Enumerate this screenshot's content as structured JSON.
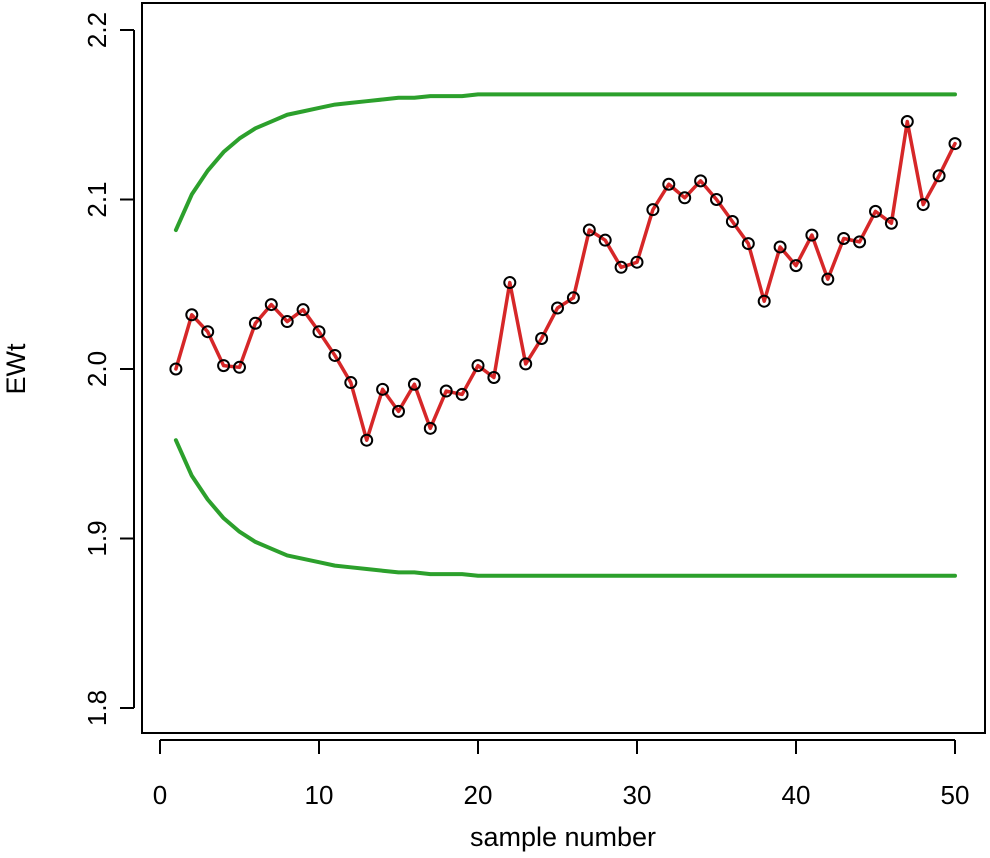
{
  "chart_data": {
    "type": "line",
    "title": "",
    "xlabel": "sample number",
    "ylabel": "EWt",
    "xlim": [
      1,
      50
    ],
    "ylim": [
      1.8,
      2.2
    ],
    "x_ticks": [
      0,
      10,
      20,
      30,
      40,
      50
    ],
    "x_tick_labels": [
      "0",
      "10",
      "20",
      "30",
      "40",
      "50"
    ],
    "y_ticks": [
      1.8,
      1.9,
      2.0,
      2.1,
      2.2
    ],
    "y_tick_labels": [
      "1.8",
      "1.9",
      "2.0",
      "2.1",
      "2.2"
    ],
    "grid": false,
    "legend": "none",
    "x": [
      1,
      2,
      3,
      4,
      5,
      6,
      7,
      8,
      9,
      10,
      11,
      12,
      13,
      14,
      15,
      16,
      17,
      18,
      19,
      20,
      21,
      22,
      23,
      24,
      25,
      26,
      27,
      28,
      29,
      30,
      31,
      32,
      33,
      34,
      35,
      36,
      37,
      38,
      39,
      40,
      41,
      42,
      43,
      44,
      45,
      46,
      47,
      48,
      49,
      50
    ],
    "series": [
      {
        "role": "data",
        "color": "#d62728",
        "marker": "open-circle",
        "values": [
          2.0,
          2.032,
          2.022,
          2.002,
          2.001,
          2.027,
          2.038,
          2.028,
          2.035,
          2.022,
          2.008,
          1.992,
          1.958,
          1.988,
          1.975,
          1.991,
          1.965,
          1.987,
          1.985,
          2.002,
          1.995,
          2.051,
          2.003,
          2.018,
          2.036,
          2.042,
          2.082,
          2.076,
          2.06,
          2.063,
          2.094,
          2.109,
          2.101,
          2.111,
          2.1,
          2.087,
          2.074,
          2.04,
          2.072,
          2.061,
          2.079,
          2.053,
          2.077,
          2.075,
          2.093,
          2.086,
          2.146,
          2.097,
          2.114,
          2.133
        ]
      },
      {
        "role": "upper-limit",
        "color": "#2ca02c",
        "values": [
          2.082,
          2.103,
          2.117,
          2.128,
          2.136,
          2.142,
          2.146,
          2.15,
          2.152,
          2.154,
          2.156,
          2.157,
          2.158,
          2.159,
          2.16,
          2.16,
          2.161,
          2.161,
          2.161,
          2.162,
          2.162,
          2.162,
          2.162,
          2.162,
          2.162,
          2.162,
          2.162,
          2.162,
          2.162,
          2.162,
          2.162,
          2.162,
          2.162,
          2.162,
          2.162,
          2.162,
          2.162,
          2.162,
          2.162,
          2.162,
          2.162,
          2.162,
          2.162,
          2.162,
          2.162,
          2.162,
          2.162,
          2.162,
          2.162,
          2.162
        ]
      },
      {
        "role": "lower-limit",
        "color": "#2ca02c",
        "values": [
          1.958,
          1.937,
          1.923,
          1.912,
          1.904,
          1.898,
          1.894,
          1.89,
          1.888,
          1.886,
          1.884,
          1.883,
          1.882,
          1.881,
          1.88,
          1.88,
          1.879,
          1.879,
          1.879,
          1.878,
          1.878,
          1.878,
          1.878,
          1.878,
          1.878,
          1.878,
          1.878,
          1.878,
          1.878,
          1.878,
          1.878,
          1.878,
          1.878,
          1.878,
          1.878,
          1.878,
          1.878,
          1.878,
          1.878,
          1.878,
          1.878,
          1.878,
          1.878,
          1.878,
          1.878,
          1.878,
          1.878,
          1.878,
          1.878,
          1.878
        ]
      }
    ]
  }
}
